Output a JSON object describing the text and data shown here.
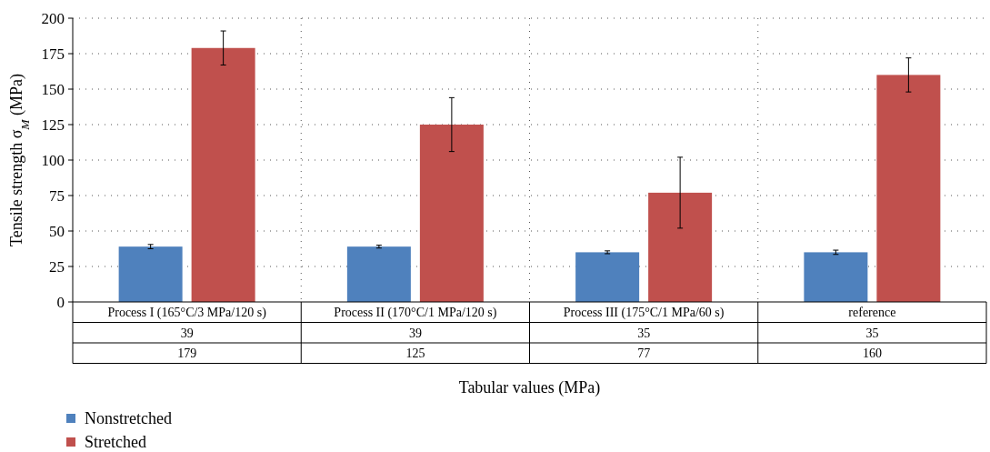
{
  "chart_data": {
    "type": "bar",
    "ylabel": "Tensile strength σ$_{M}$ (MPa)",
    "xlabel": "Tabular values (MPa)",
    "categories": [
      "Process I (165°C/3 MPa/120 s)",
      "Process II (170°C/1 MPa/120 s)",
      "Process III (175°C/1 MPa/60 s)",
      "reference"
    ],
    "series": [
      {
        "name": "Nonstretched",
        "color": "#4f81bd",
        "values": [
          39,
          39,
          35,
          35
        ],
        "errors": [
          1.5,
          1,
          1,
          1.5
        ]
      },
      {
        "name": "Stretched",
        "color": "#c0504d",
        "values": [
          179,
          125,
          77,
          160
        ],
        "errors": [
          12,
          19,
          25,
          12
        ]
      }
    ],
    "ylim": [
      0,
      200
    ],
    "yticks": [
      0,
      25,
      50,
      75,
      100,
      125,
      150,
      175,
      200
    ],
    "grid": "y",
    "legend": "bottom left",
    "data_labels": true
  }
}
